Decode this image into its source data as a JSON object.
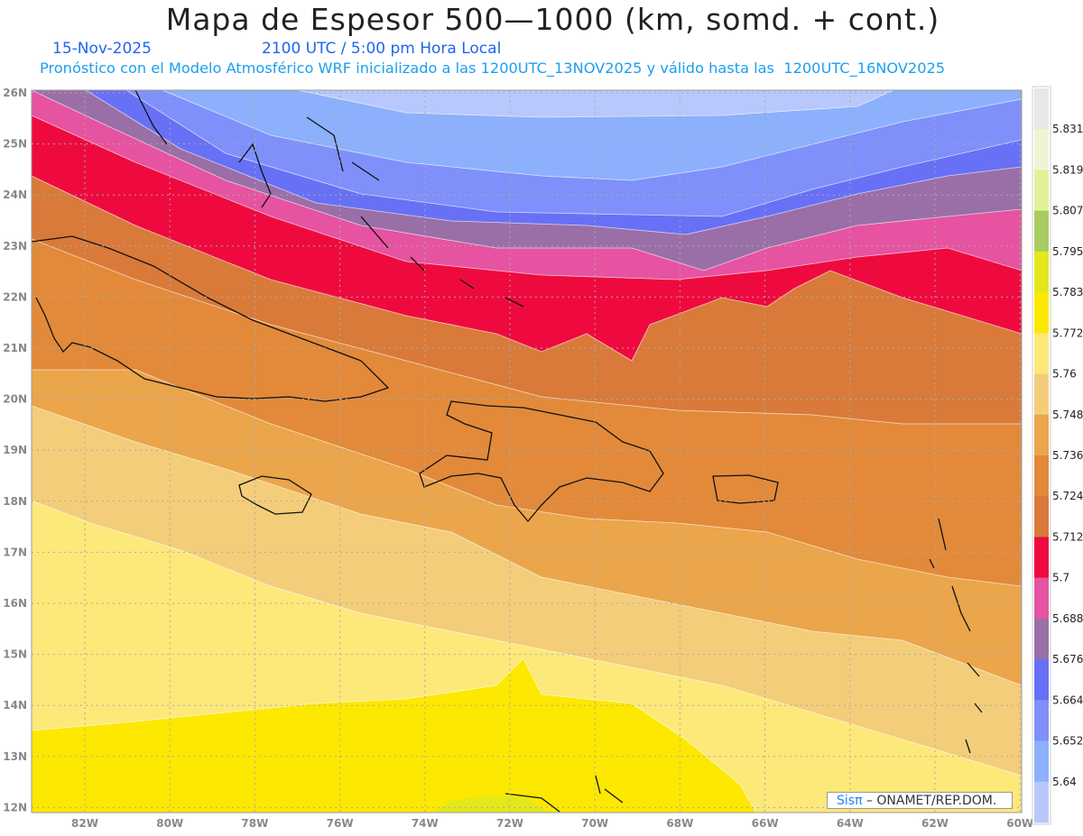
{
  "title": "Mapa de Espesor 500—1000 (km, somd. + cont.)",
  "date": "15-Nov-2025",
  "time": "2100 UTC / 5:00 pm Hora Local",
  "info": "Pronóstico con el Modelo Atmosférico WRF inicializado a las 1200UTC_13NOV2025 y válido hasta las  1200UTC_16NOV2025",
  "credit": {
    "brand": "Sisπ",
    "text": " – ONAMET/REP.DOM."
  },
  "lon_labels": [
    "82W",
    "80W",
    "78W",
    "76W",
    "74W",
    "72W",
    "70W",
    "68W",
    "66W",
    "64W",
    "62W",
    "60W"
  ],
  "lat_labels": [
    "26N",
    "25N",
    "24N",
    "23N",
    "22N",
    "21N",
    "20N",
    "19N",
    "18N",
    "17N",
    "16N",
    "15N",
    "14N",
    "13N",
    "12N"
  ],
  "colorbar": {
    "labels": [
      "5.831",
      "5.819",
      "5.807",
      "5.795",
      "5.783",
      "5.772",
      "5.76",
      "5.748",
      "5.736",
      "5.724",
      "5.712",
      "5.7",
      "5.688",
      "5.676",
      "5.664",
      "5.652",
      "5.64"
    ],
    "colors": [
      "#e8e8e8",
      "#eef5d4",
      "#e2f29a",
      "#a8cc60",
      "#e2e81a",
      "#fce800",
      "#fde87a",
      "#f3cd7a",
      "#eba54a",
      "#e28a3a",
      "#d97a3a",
      "#ee0a3f",
      "#e653a0",
      "#9a6fa8",
      "#6870f5",
      "#7f90fb",
      "#8cb0fc",
      "#b8c8fc"
    ]
  }
}
